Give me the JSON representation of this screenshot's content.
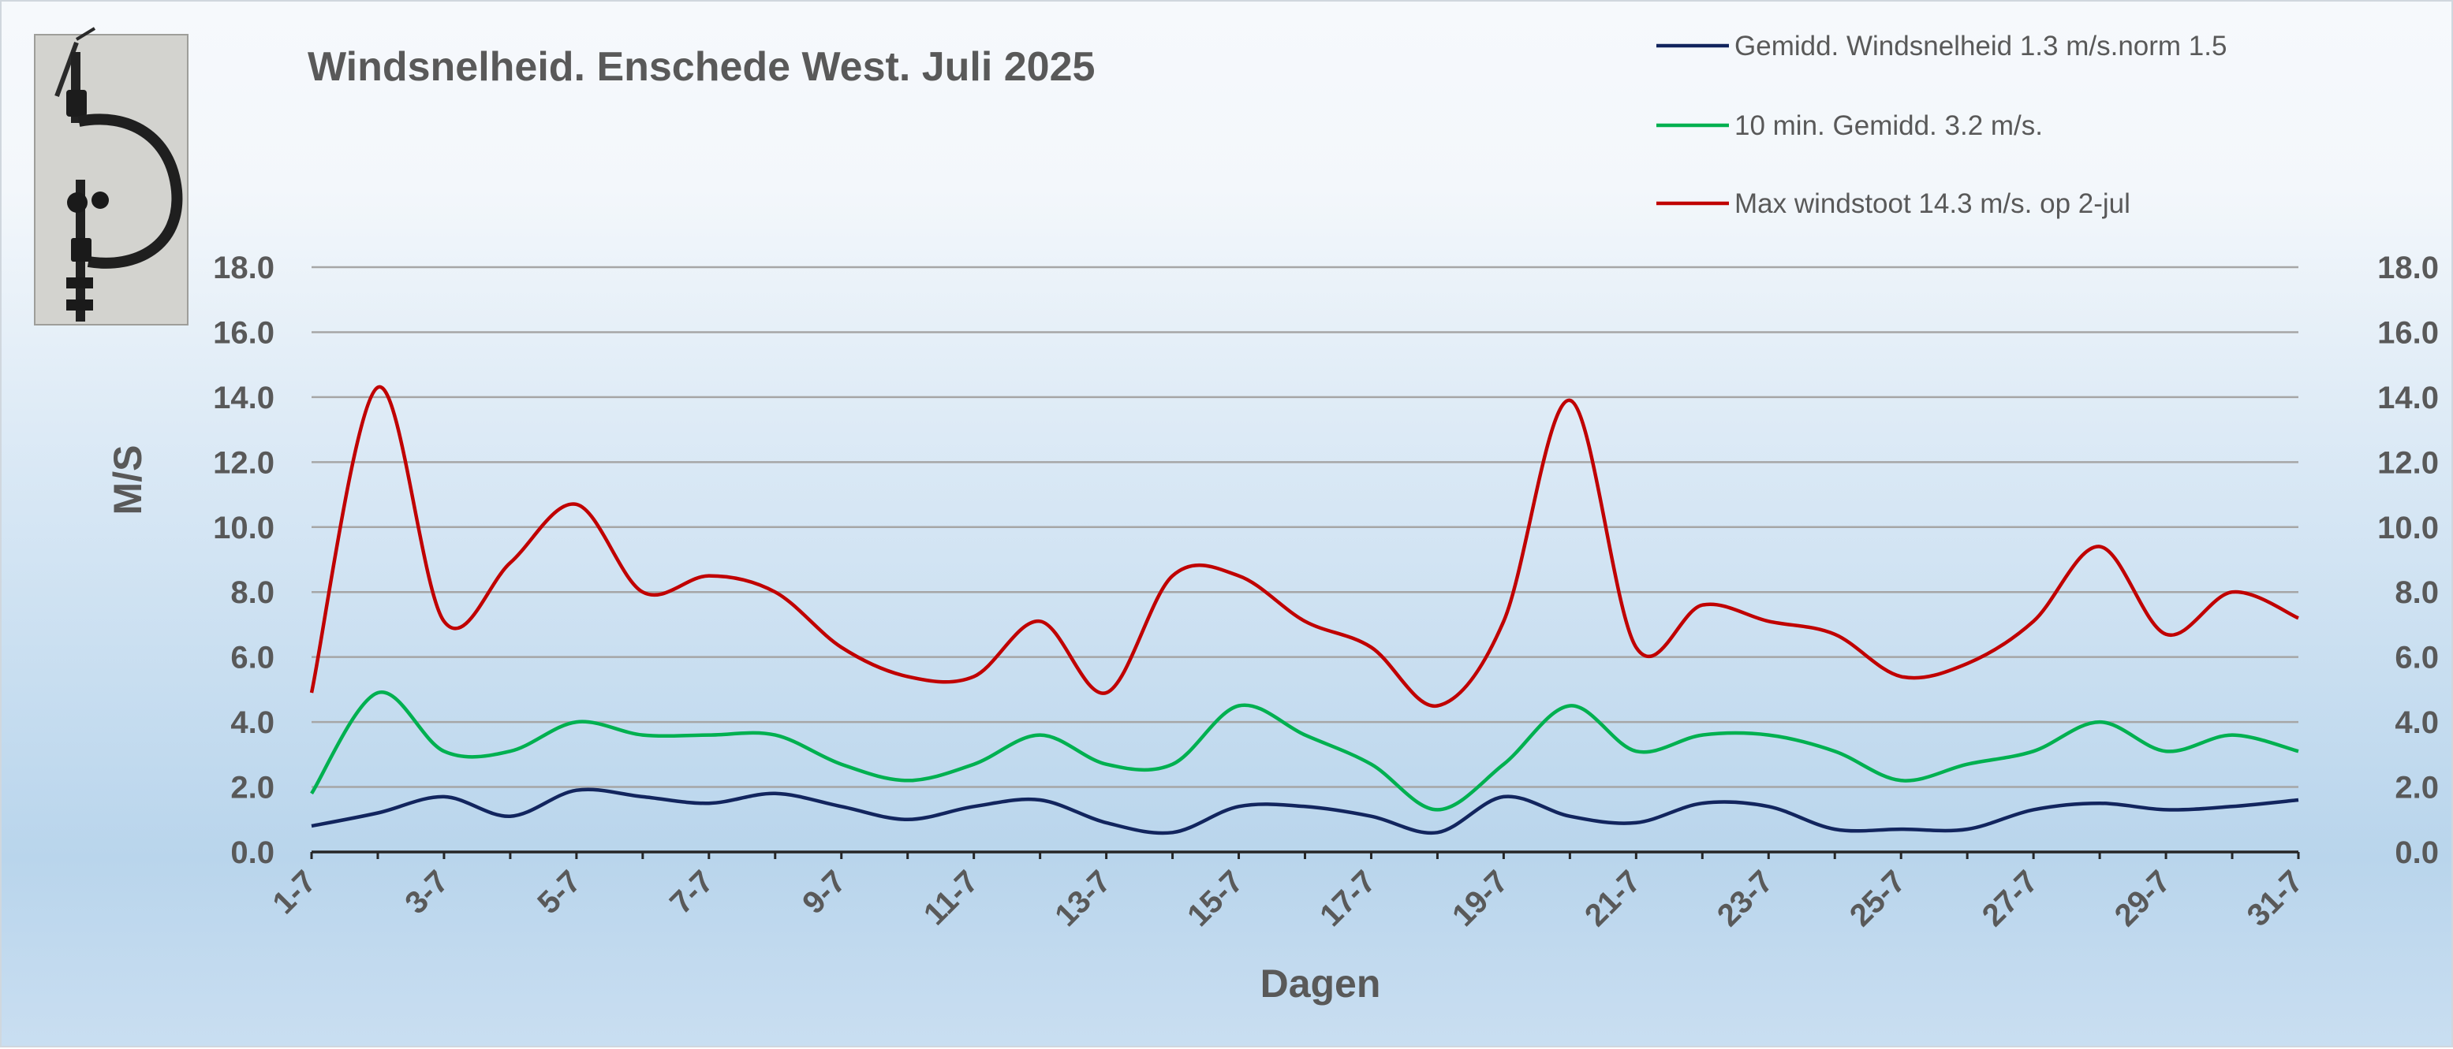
{
  "chart_data": {
    "type": "line",
    "title": "Windsnelheid. Enschede West. Juli 2025",
    "xlabel": "Dagen",
    "ylabel": "M/S",
    "ylim": [
      0,
      18
    ],
    "y_ticks": [
      "0.0",
      "2.0",
      "4.0",
      "6.0",
      "8.0",
      "10.0",
      "12.0",
      "14.0",
      "16.0",
      "18.0"
    ],
    "y_axis_right_mirror": true,
    "grid": true,
    "legend_position": "top-right",
    "x": [
      "1-7",
      "2-7",
      "3-7",
      "4-7",
      "5-7",
      "6-7",
      "7-7",
      "8-7",
      "9-7",
      "10-7",
      "11-7",
      "12-7",
      "13-7",
      "14-7",
      "15-7",
      "16-7",
      "17-7",
      "18-7",
      "19-7",
      "20-7",
      "21-7",
      "22-7",
      "23-7",
      "24-7",
      "25-7",
      "26-7",
      "27-7",
      "28-7",
      "29-7",
      "30-7",
      "31-7"
    ],
    "x_tick_labels": [
      "1-7",
      "3-7",
      "5-7",
      "7-7",
      "9-7",
      "11-7",
      "13-7",
      "15-7",
      "17-7",
      "19-7",
      "21-7",
      "23-7",
      "25-7",
      "27-7",
      "29-7",
      "31-7"
    ],
    "series": [
      {
        "name": "Gemidd. Windsnelheid 1.3 m/s.norm 1.5",
        "color": "#12255e",
        "values": [
          0.8,
          1.2,
          1.7,
          1.1,
          1.9,
          1.7,
          1.5,
          1.8,
          1.4,
          1.0,
          1.4,
          1.6,
          0.9,
          0.6,
          1.4,
          1.4,
          1.1,
          0.6,
          1.7,
          1.1,
          0.9,
          1.5,
          1.4,
          0.7,
          0.7,
          0.7,
          1.3,
          1.5,
          1.3,
          1.4,
          1.6
        ]
      },
      {
        "name": "10 min. Gemidd. 3.2 m/s.",
        "color": "#00b050",
        "values": [
          1.8,
          4.9,
          3.1,
          3.1,
          4.0,
          3.6,
          3.6,
          3.6,
          2.7,
          2.2,
          2.7,
          3.6,
          2.7,
          2.7,
          4.5,
          3.6,
          2.7,
          1.3,
          2.7,
          4.5,
          3.1,
          3.6,
          3.6,
          3.1,
          2.2,
          2.7,
          3.1,
          4.0,
          3.1,
          3.6,
          3.1
        ]
      },
      {
        "name": "Max windstoot 14.3 m/s.   op 2-jul",
        "color": "#c00000",
        "values": [
          4.9,
          14.3,
          7.1,
          8.9,
          10.7,
          8.0,
          8.5,
          8.0,
          6.3,
          5.4,
          5.4,
          7.1,
          4.9,
          8.5,
          8.5,
          7.1,
          6.3,
          4.5,
          7.1,
          13.9,
          6.3,
          7.6,
          7.1,
          6.7,
          5.4,
          5.8,
          7.1,
          9.4,
          6.7,
          8.0,
          7.2
        ]
      }
    ]
  }
}
